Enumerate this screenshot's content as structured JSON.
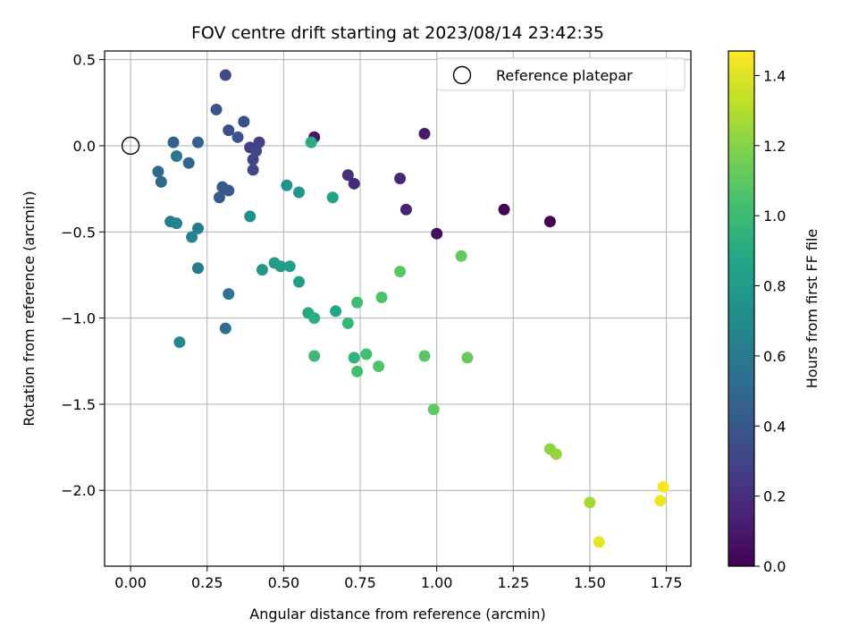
{
  "chart_data": {
    "type": "scatter",
    "title": "FOV centre drift starting at 2023/08/14 23:42:35",
    "xlabel": "Angular distance from reference (arcmin)",
    "ylabel": "Rotation from reference (arcmin)",
    "xlim": [
      -0.085,
      1.83
    ],
    "ylim": [
      -2.44,
      0.55
    ],
    "x_ticks": [
      0.0,
      0.25,
      0.5,
      0.75,
      1.0,
      1.25,
      1.5,
      1.75
    ],
    "x_tick_labels": [
      "0.00",
      "0.25",
      "0.50",
      "0.75",
      "1.00",
      "1.25",
      "1.50",
      "1.75"
    ],
    "y_ticks": [
      0.5,
      0.0,
      -0.5,
      -1.0,
      -1.5,
      -2.0
    ],
    "y_tick_labels": [
      "0.5",
      "0.0",
      "−0.5",
      "−1.0",
      "−1.5",
      "−2.0"
    ],
    "grid": true,
    "colormap": "viridis",
    "colorbar": {
      "label": "Hours from first FF file",
      "range": [
        0.0,
        1.47
      ],
      "ticks": [
        0.0,
        0.2,
        0.4,
        0.6,
        0.8,
        1.0,
        1.2,
        1.4
      ],
      "tick_labels": [
        "0.0",
        "0.2",
        "0.4",
        "0.6",
        "0.8",
        "1.0",
        "1.2",
        "1.4"
      ]
    },
    "legend": {
      "position": "top-right",
      "entries": [
        {
          "label": "Reference platepar",
          "marker": "open-circle",
          "x": 0.0,
          "y": 0.0
        }
      ]
    },
    "points": [
      {
        "x": 1.37,
        "y": -0.44,
        "c": 0.0
      },
      {
        "x": 1.22,
        "y": -0.37,
        "c": 0.02
      },
      {
        "x": 1.0,
        "y": -0.51,
        "c": 0.05
      },
      {
        "x": 0.6,
        "y": 0.05,
        "c": 0.07
      },
      {
        "x": 0.96,
        "y": 0.07,
        "c": 0.1
      },
      {
        "x": 0.9,
        "y": -0.37,
        "c": 0.14
      },
      {
        "x": 0.88,
        "y": -0.19,
        "c": 0.16
      },
      {
        "x": 0.73,
        "y": -0.22,
        "c": 0.18
      },
      {
        "x": 0.71,
        "y": -0.17,
        "c": 0.2
      },
      {
        "x": 0.39,
        "y": -0.01,
        "c": 0.27
      },
      {
        "x": 0.42,
        "y": 0.02,
        "c": 0.28
      },
      {
        "x": 0.41,
        "y": -0.03,
        "c": 0.3
      },
      {
        "x": 0.4,
        "y": -0.08,
        "c": 0.31
      },
      {
        "x": 0.4,
        "y": -0.14,
        "c": 0.32
      },
      {
        "x": 0.31,
        "y": 0.41,
        "c": 0.34
      },
      {
        "x": 0.32,
        "y": 0.09,
        "c": 0.35
      },
      {
        "x": 0.37,
        "y": 0.14,
        "c": 0.36
      },
      {
        "x": 0.35,
        "y": 0.05,
        "c": 0.37
      },
      {
        "x": 0.28,
        "y": 0.21,
        "c": 0.38
      },
      {
        "x": 0.3,
        "y": -0.24,
        "c": 0.4
      },
      {
        "x": 0.32,
        "y": -0.26,
        "c": 0.41
      },
      {
        "x": 0.29,
        "y": -0.3,
        "c": 0.42
      },
      {
        "x": 0.22,
        "y": 0.02,
        "c": 0.44
      },
      {
        "x": 0.14,
        "y": 0.02,
        "c": 0.45
      },
      {
        "x": 0.19,
        "y": -0.1,
        "c": 0.47
      },
      {
        "x": 0.09,
        "y": -0.15,
        "c": 0.5
      },
      {
        "x": 0.1,
        "y": -0.21,
        "c": 0.51
      },
      {
        "x": 0.31,
        "y": -1.06,
        "c": 0.52
      },
      {
        "x": 0.32,
        "y": -0.86,
        "c": 0.55
      },
      {
        "x": 0.15,
        "y": -0.06,
        "c": 0.58
      },
      {
        "x": 0.22,
        "y": -0.71,
        "c": 0.6
      },
      {
        "x": 0.22,
        "y": -0.48,
        "c": 0.61
      },
      {
        "x": 0.13,
        "y": -0.44,
        "c": 0.62
      },
      {
        "x": 0.15,
        "y": -0.45,
        "c": 0.64
      },
      {
        "x": 0.2,
        "y": -0.53,
        "c": 0.66
      },
      {
        "x": 0.16,
        "y": -1.14,
        "c": 0.68
      },
      {
        "x": 0.39,
        "y": -0.41,
        "c": 0.73
      },
      {
        "x": 0.51,
        "y": -0.23,
        "c": 0.75
      },
      {
        "x": 0.55,
        "y": -0.27,
        "c": 0.77
      },
      {
        "x": 0.43,
        "y": -0.72,
        "c": 0.78
      },
      {
        "x": 0.47,
        "y": -0.68,
        "c": 0.8
      },
      {
        "x": 0.49,
        "y": -0.7,
        "c": 0.81
      },
      {
        "x": 0.52,
        "y": -0.7,
        "c": 0.82
      },
      {
        "x": 0.55,
        "y": -0.79,
        "c": 0.83
      },
      {
        "x": 0.66,
        "y": -0.3,
        "c": 0.85
      },
      {
        "x": 0.67,
        "y": -0.96,
        "c": 0.87
      },
      {
        "x": 0.58,
        "y": -0.97,
        "c": 0.89
      },
      {
        "x": 0.59,
        "y": 0.02,
        "c": 0.9
      },
      {
        "x": 0.6,
        "y": -1.0,
        "c": 0.93
      },
      {
        "x": 0.73,
        "y": -1.23,
        "c": 0.95
      },
      {
        "x": 0.71,
        "y": -1.03,
        "c": 0.97
      },
      {
        "x": 0.6,
        "y": -1.22,
        "c": 0.99
      },
      {
        "x": 0.74,
        "y": -0.91,
        "c": 1.01
      },
      {
        "x": 0.74,
        "y": -1.31,
        "c": 1.02
      },
      {
        "x": 0.77,
        "y": -1.21,
        "c": 1.03
      },
      {
        "x": 0.82,
        "y": -0.88,
        "c": 1.05
      },
      {
        "x": 0.81,
        "y": -1.28,
        "c": 1.06
      },
      {
        "x": 0.88,
        "y": -0.73,
        "c": 1.08
      },
      {
        "x": 0.96,
        "y": -1.22,
        "c": 1.09
      },
      {
        "x": 0.99,
        "y": -1.53,
        "c": 1.1
      },
      {
        "x": 1.08,
        "y": -0.64,
        "c": 1.11
      },
      {
        "x": 1.1,
        "y": -1.23,
        "c": 1.12
      },
      {
        "x": 1.37,
        "y": -1.76,
        "c": 1.22
      },
      {
        "x": 1.39,
        "y": -1.79,
        "c": 1.23
      },
      {
        "x": 1.5,
        "y": -2.07,
        "c": 1.27
      },
      {
        "x": 1.53,
        "y": -2.3,
        "c": 1.42
      },
      {
        "x": 1.73,
        "y": -2.06,
        "c": 1.43
      },
      {
        "x": 1.74,
        "y": -1.98,
        "c": 1.46
      }
    ]
  }
}
